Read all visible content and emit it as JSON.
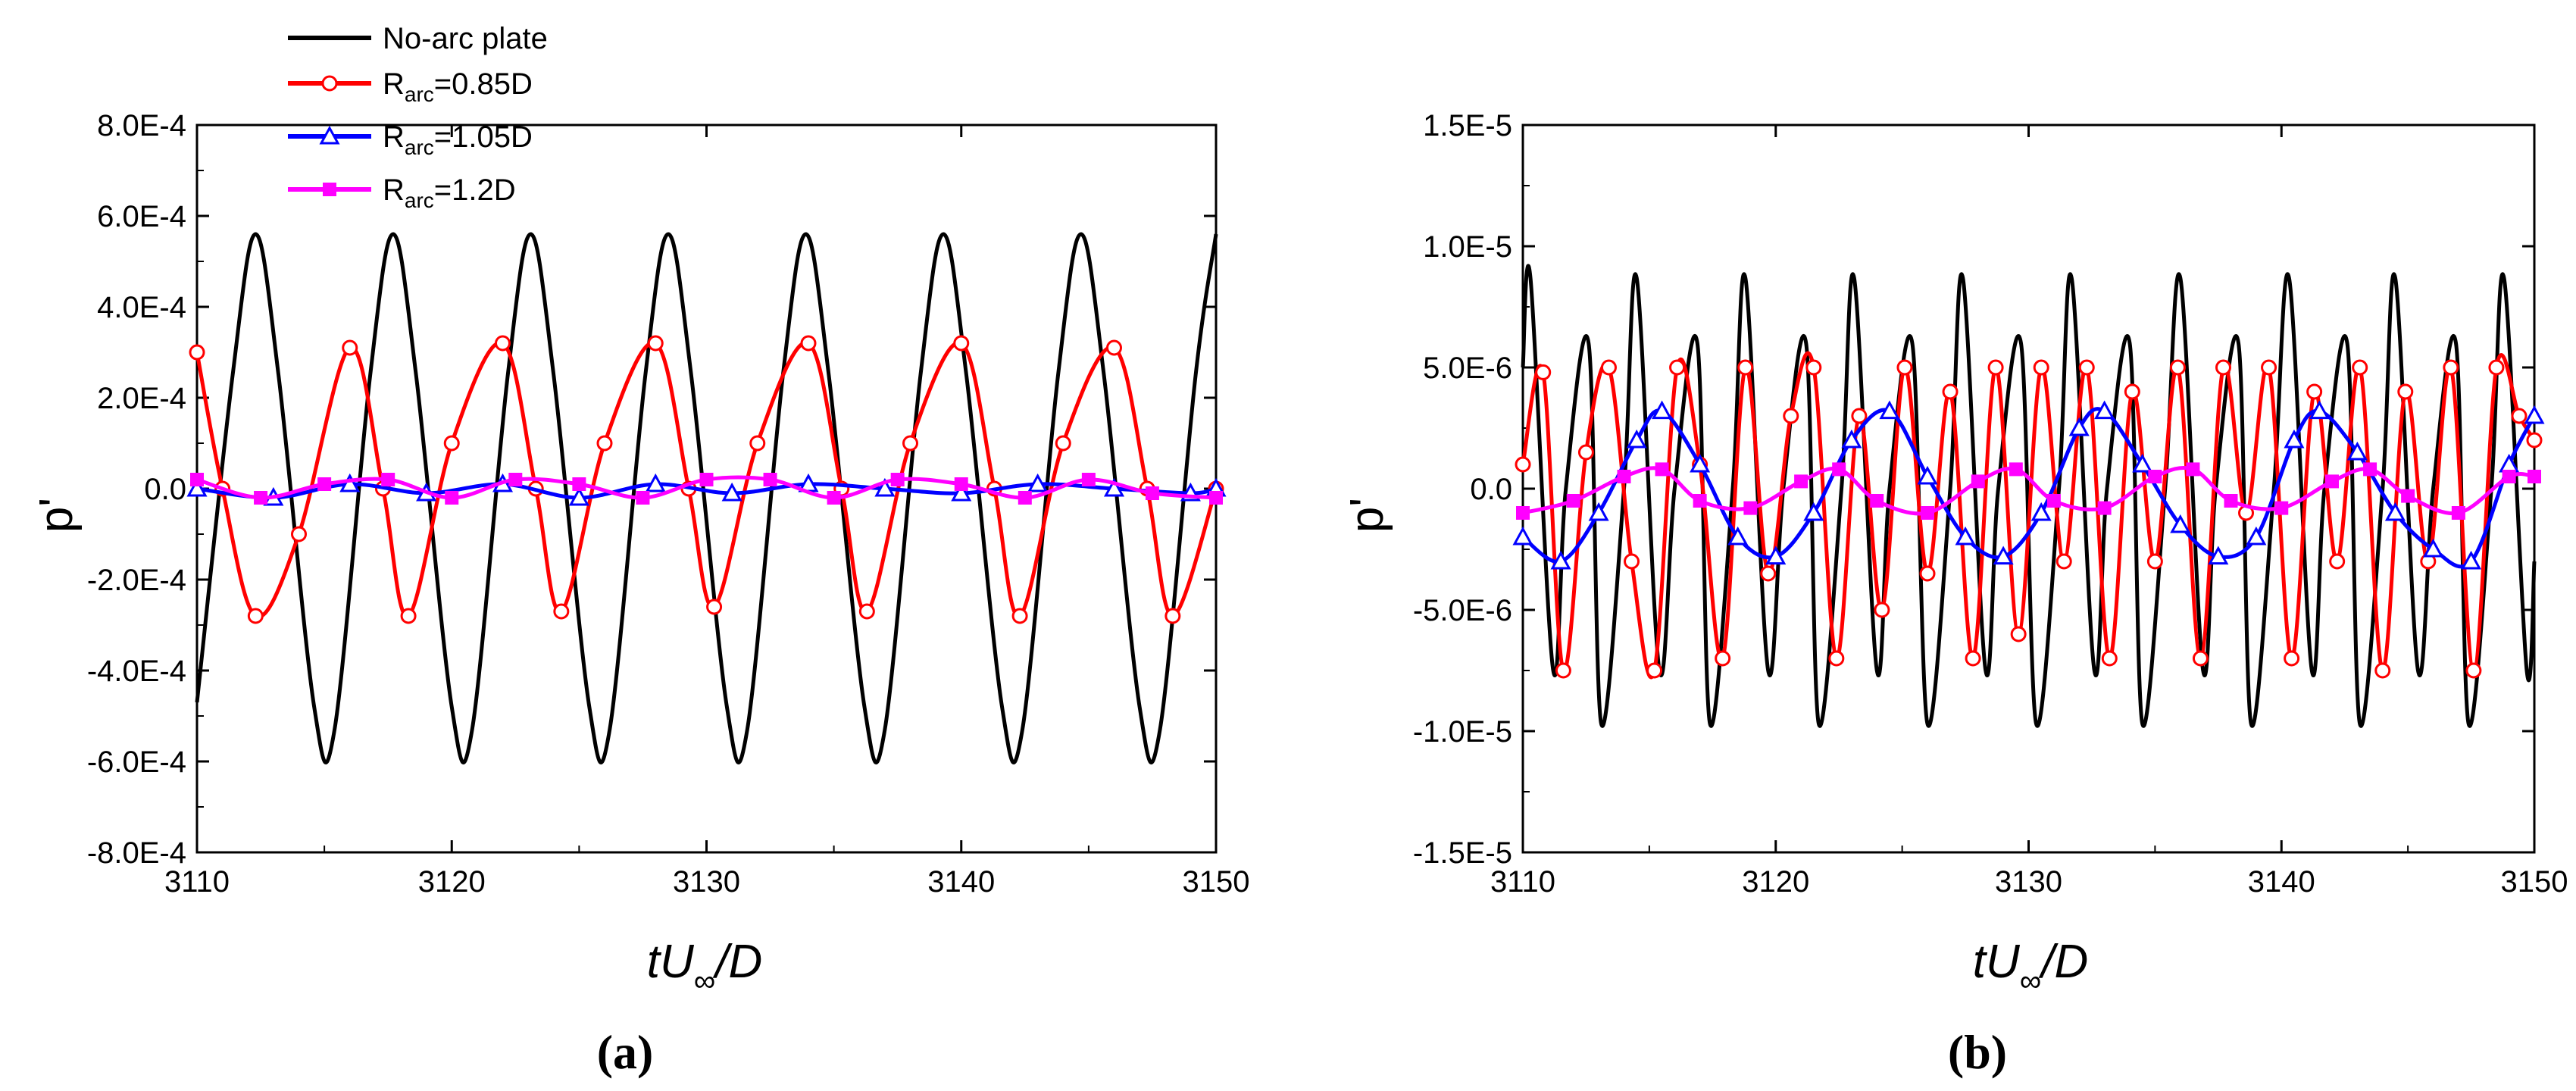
{
  "colors": {
    "black": "#000000",
    "red": "#ff0000",
    "blue": "#0000ff",
    "magenta": "#ff00ff"
  },
  "legend": {
    "entries": [
      {
        "name": "No-arc plate",
        "color": "#000000",
        "marker": "none"
      },
      {
        "name_main": "R",
        "name_sub": "arc",
        "name_rest": "=0.85D",
        "color": "#ff0000",
        "marker": "circle-open"
      },
      {
        "name_main": "R",
        "name_sub": "arc",
        "name_rest": "=1.05D",
        "color": "#0000ff",
        "marker": "triangle-open"
      },
      {
        "name_main": "R",
        "name_sub": "arc",
        "name_rest": "=1.2D",
        "color": "#ff00ff",
        "marker": "square-filled"
      }
    ]
  },
  "chart_data": [
    {
      "type": "line",
      "caption": "(a)",
      "xlabel_main": "tU",
      "xlabel_sub": "∞",
      "xlabel_rest": "/D",
      "ylabel": "p'",
      "xlim": [
        3110,
        3150
      ],
      "ylim": [
        -0.0008,
        0.0008
      ],
      "xticks": [
        "3110",
        "3120",
        "3130",
        "3140",
        "3150"
      ],
      "yticks": [
        "8.0E-4",
        "6.0E-4",
        "4.0E-4",
        "2.0E-4",
        "0.0",
        "-2.0E-4",
        "-4.0E-4",
        "-6.0E-4",
        "-8.0E-4"
      ],
      "series": [
        {
          "name": "No-arc plate",
          "x": [
            3110,
            3111.4,
            3112.3,
            3113.2,
            3114.6,
            3115.4,
            3116.8,
            3117.7,
            3118.6,
            3120.0,
            3120.8,
            3122.2,
            3123.1,
            3124.0,
            3125.4,
            3126.2,
            3127.6,
            3128.5,
            3129.4,
            3130.8,
            3131.6,
            3133.0,
            3133.9,
            3134.8,
            3136.2,
            3137.0,
            3138.4,
            3139.3,
            3140.2,
            3141.6,
            3142.4,
            3143.8,
            3144.7,
            3145.6,
            3147.0,
            3147.8,
            3149.2,
            3150.0
          ],
          "y": [
            -0.00047,
            0.00025,
            0.00056,
            0.00025,
            -0.00048,
            -0.00053,
            0.00025,
            0.00056,
            0.00025,
            -0.00048,
            -0.00053,
            0.00025,
            0.00056,
            0.00025,
            -0.00048,
            -0.00053,
            0.00025,
            0.00056,
            0.00025,
            -0.00048,
            -0.00053,
            0.00025,
            0.00056,
            0.00025,
            -0.00048,
            -0.00053,
            0.00025,
            0.00056,
            0.00025,
            -0.00048,
            -0.00053,
            0.00025,
            0.00056,
            0.00025,
            -0.00048,
            -0.00053,
            0.00025,
            0.00056
          ]
        },
        {
          "name": "Rarc=0.85D",
          "x": [
            3110,
            3111,
            3112.3,
            3114,
            3116,
            3117.3,
            3118.3,
            3120,
            3122,
            3123.3,
            3124.3,
            3126,
            3128,
            3129.3,
            3130.3,
            3132,
            3134,
            3135.3,
            3136.3,
            3138,
            3140,
            3141.3,
            3142.3,
            3144,
            3146,
            3147.3,
            3148.3,
            3150
          ],
          "y": [
            0.0003,
            0.0,
            -0.00028,
            -0.0001,
            0.00031,
            0.0,
            -0.00028,
            0.0001,
            0.00032,
            0.0,
            -0.00027,
            0.0001,
            0.00032,
            0.0,
            -0.00026,
            0.0001,
            0.00032,
            0.0,
            -0.00027,
            0.0001,
            0.00032,
            0.0,
            -0.00028,
            0.0001,
            0.00031,
            0.0,
            -0.00028,
            0.0
          ]
        },
        {
          "name": "Rarc=1.05D",
          "x": [
            3110,
            3113,
            3116,
            3119,
            3122,
            3125,
            3128,
            3131,
            3134,
            3137,
            3140,
            3143,
            3146,
            3149,
            3150
          ],
          "y": [
            0.0,
            -2e-05,
            1e-05,
            -1e-05,
            1e-05,
            -2e-05,
            1e-05,
            -1e-05,
            1e-05,
            0.0,
            -1e-05,
            1e-05,
            0.0,
            -1e-05,
            0.0
          ]
        },
        {
          "name": "Rarc=1.2D",
          "x": [
            3110,
            3112.5,
            3115,
            3117.5,
            3120,
            3122.5,
            3125,
            3127.5,
            3130,
            3132.5,
            3135,
            3137.5,
            3140,
            3142.5,
            3145,
            3147.5,
            3150
          ],
          "y": [
            2e-05,
            -2e-05,
            1e-05,
            2e-05,
            -2e-05,
            2e-05,
            1e-05,
            -2e-05,
            2e-05,
            2e-05,
            -2e-05,
            2e-05,
            1e-05,
            -2e-05,
            2e-05,
            -1e-05,
            -2e-05
          ]
        }
      ]
    },
    {
      "type": "line",
      "caption": "(b)",
      "xlabel_main": "tU",
      "xlabel_sub": "∞",
      "xlabel_rest": "/D",
      "ylabel": "p'",
      "xlim": [
        3110,
        3150
      ],
      "ylim": [
        -1.5e-05,
        1.5e-05
      ],
      "xticks": [
        "3110",
        "3120",
        "3130",
        "3140",
        "3150"
      ],
      "yticks": [
        "1.5E-5",
        "1.0E-5",
        "5.0E-6",
        "0.0",
        "-5.0E-6",
        "-1.0E-5",
        "-1.5E-5"
      ],
      "series": [
        {
          "name": "No-arc plate",
          "x": [
            3110,
            3110.3,
            3111.2,
            3111.7,
            3112.6,
            3113.1,
            3114.0,
            3114.5,
            3115.4,
            3116.0,
            3116.9,
            3117.4,
            3118.3,
            3118.8,
            3119.7,
            3120.3,
            3121.2,
            3121.7,
            3122.6,
            3123.1,
            3124.0,
            3124.5,
            3125.4,
            3126.0,
            3126.9,
            3127.4,
            3128.3,
            3128.8,
            3129.7,
            3130.3,
            3131.2,
            3131.7,
            3132.6,
            3133.1,
            3134.0,
            3134.5,
            3135.4,
            3136.0,
            3136.9,
            3137.4,
            3138.3,
            3138.8,
            3139.7,
            3140.3,
            3141.2,
            3141.7,
            3142.6,
            3143.1,
            3144.0,
            3144.5,
            3145.4,
            3146.0,
            3146.9,
            3147.4,
            3148.3,
            3148.8,
            3149.7,
            3150.0
          ],
          "y": [
            5e-06,
            8.7e-06,
            -7.5e-06,
            0,
            6e-06,
            -9.7e-06,
            0,
            8.7e-06,
            -7.5e-06,
            0,
            6e-06,
            -9.7e-06,
            0,
            8.7e-06,
            -7.5e-06,
            0,
            6e-06,
            -9.7e-06,
            0,
            8.7e-06,
            -7.5e-06,
            0,
            6e-06,
            -9.7e-06,
            0,
            8.7e-06,
            -7.5e-06,
            0,
            6e-06,
            -9.7e-06,
            0,
            8.7e-06,
            -7.5e-06,
            0,
            6e-06,
            -9.7e-06,
            0,
            8.7e-06,
            -7.5e-06,
            0,
            6e-06,
            -9.7e-06,
            0,
            8.7e-06,
            -7.5e-06,
            0,
            6e-06,
            -9.7e-06,
            0,
            8.7e-06,
            -7.5e-06,
            0,
            6e-06,
            -9.7e-06,
            0,
            8.7e-06,
            -7.5e-06,
            -3e-06
          ]
        },
        {
          "name": "Rarc=0.85D",
          "x": [
            3110,
            3110.8,
            3111.6,
            3112.5,
            3113.4,
            3114.3,
            3115.2,
            3116.1,
            3117.0,
            3117.9,
            3118.8,
            3119.7,
            3120.6,
            3121.5,
            3122.4,
            3123.3,
            3124.2,
            3125.1,
            3126.0,
            3126.9,
            3127.8,
            3128.7,
            3129.6,
            3130.5,
            3131.4,
            3132.3,
            3133.2,
            3134.1,
            3135.0,
            3135.9,
            3136.8,
            3137.7,
            3138.6,
            3139.5,
            3140.4,
            3141.3,
            3142.2,
            3143.1,
            3144.0,
            3144.9,
            3145.8,
            3146.7,
            3147.6,
            3148.5,
            3149.4,
            3150.0
          ],
          "y": [
            1e-06,
            4.8e-06,
            -7.5e-06,
            1.5e-06,
            5e-06,
            -3e-06,
            -7.5e-06,
            5e-06,
            1e-06,
            -7e-06,
            5e-06,
            -3.5e-06,
            3e-06,
            5e-06,
            -7e-06,
            3e-06,
            -5e-06,
            5e-06,
            -3.5e-06,
            4e-06,
            -7e-06,
            5e-06,
            -6e-06,
            5e-06,
            -3e-06,
            5e-06,
            -7e-06,
            4e-06,
            -3e-06,
            5e-06,
            -7e-06,
            5e-06,
            -1e-06,
            5e-06,
            -7e-06,
            4e-06,
            -3e-06,
            5e-06,
            -7.5e-06,
            4e-06,
            -3e-06,
            5e-06,
            -7.5e-06,
            5e-06,
            3e-06,
            2e-06
          ]
        },
        {
          "name": "Rarc=1.05D",
          "x": [
            3110,
            3111.5,
            3113,
            3114.5,
            3115.5,
            3117,
            3118.5,
            3120,
            3121.5,
            3123,
            3124.5,
            3126,
            3127.5,
            3129,
            3130.5,
            3132,
            3133,
            3134.5,
            3136,
            3137.5,
            3139,
            3140.5,
            3141.5,
            3143,
            3144.5,
            3146,
            3147.5,
            3149,
            3150
          ],
          "y": [
            -2e-06,
            -3e-06,
            -1e-06,
            2e-06,
            3.2e-06,
            1e-06,
            -2e-06,
            -2.8e-06,
            -1e-06,
            2e-06,
            3.2e-06,
            5e-07,
            -2e-06,
            -2.8e-06,
            -1e-06,
            2.5e-06,
            3.2e-06,
            1e-06,
            -1.5e-06,
            -2.8e-06,
            -2e-06,
            2e-06,
            3.2e-06,
            1.5e-06,
            -1e-06,
            -2.5e-06,
            -3e-06,
            1e-06,
            3e-06
          ]
        },
        {
          "name": "Rarc=1.2D",
          "x": [
            3110,
            3112,
            3114,
            3115.5,
            3117,
            3119,
            3121,
            3122.5,
            3124,
            3126,
            3128,
            3129.5,
            3131,
            3133,
            3135,
            3136.5,
            3138,
            3140,
            3142,
            3143.5,
            3145,
            3147,
            3149,
            3150
          ],
          "y": [
            -1e-06,
            -5e-07,
            5e-07,
            8e-07,
            -5e-07,
            -8e-07,
            3e-07,
            8e-07,
            -5e-07,
            -1e-06,
            3e-07,
            8e-07,
            -5e-07,
            -8e-07,
            5e-07,
            8e-07,
            -5e-07,
            -8e-07,
            3e-07,
            8e-07,
            -3e-07,
            -1e-06,
            5e-07,
            5e-07
          ]
        }
      ]
    }
  ]
}
